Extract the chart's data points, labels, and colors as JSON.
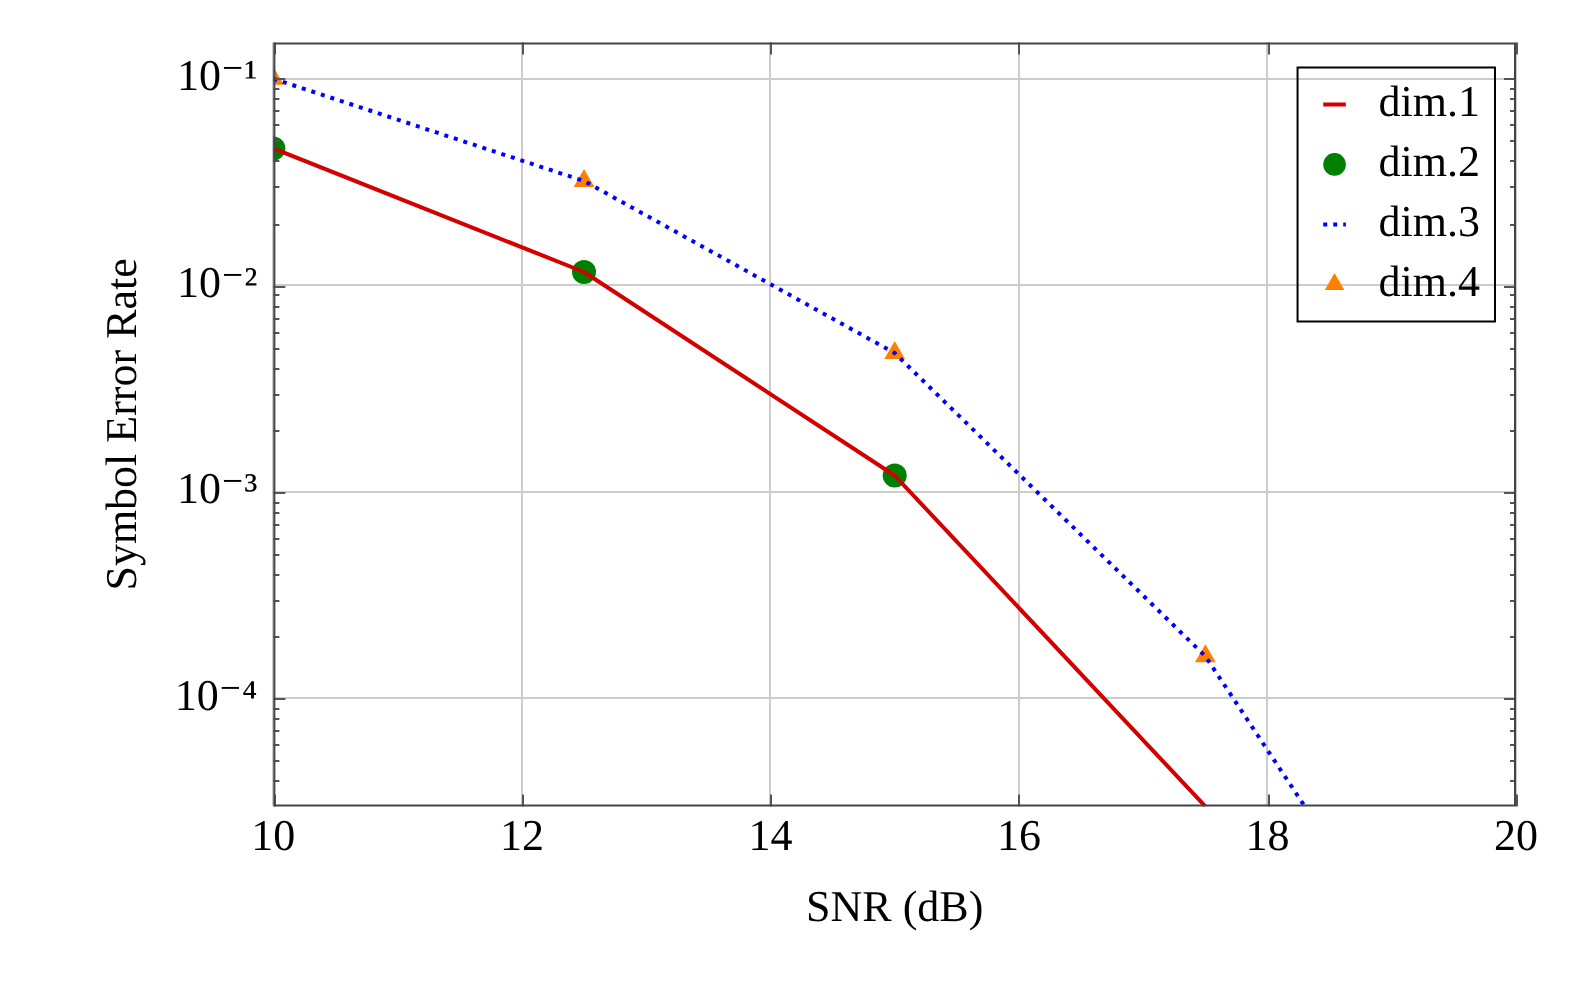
{
  "chart_data": {
    "type": "line",
    "xlabel": "SNR (dB)",
    "ylabel": "Symbol Error Rate",
    "x": [
      10,
      12.5,
      15,
      17.5
    ],
    "series": [
      {
        "name": "dim.1",
        "type": "line",
        "color": "#d40000",
        "marker": "none",
        "line_style": "solid",
        "values": [
          0.046,
          0.0116,
          0.0012,
          3e-05
        ]
      },
      {
        "name": "dim.2",
        "type": "scatter",
        "color": "#008000",
        "marker": "circle",
        "values": [
          0.046,
          0.0116,
          0.0012,
          null
        ]
      },
      {
        "name": "dim.3",
        "type": "line",
        "color": "#0000ff",
        "marker": "none",
        "line_style": "dotted",
        "x": [
          10,
          12.5,
          15,
          17.5,
          18.3
        ],
        "values": [
          0.1,
          0.032,
          0.0047,
          0.00016,
          3e-05
        ]
      },
      {
        "name": "dim.4",
        "type": "scatter",
        "color": "#ff8000",
        "marker": "triangle",
        "values": [
          0.1,
          0.032,
          0.0047,
          0.00016
        ]
      }
    ],
    "log": "y",
    "xlim": [
      10,
      20
    ],
    "ylim": [
      3e-05,
      0.15
    ],
    "xticks": [
      10,
      12,
      14,
      16,
      18,
      20
    ],
    "yticks": [
      {
        "value": 4e-05,
        "label": null
      },
      {
        "value": 5e-05,
        "label": null
      },
      {
        "value": 6e-05,
        "label": null
      },
      {
        "value": 7e-05,
        "label": null
      },
      {
        "value": 8e-05,
        "label": null
      },
      {
        "value": 9e-05,
        "label": null
      },
      {
        "value": 0.0001,
        "label": "10⁻⁴"
      },
      {
        "value": 0.0002,
        "label": null
      },
      {
        "value": 0.0003,
        "label": null
      },
      {
        "value": 0.0004,
        "label": null
      },
      {
        "value": 0.0005,
        "label": null
      },
      {
        "value": 0.0006,
        "label": null
      },
      {
        "value": 0.0007,
        "label": null
      },
      {
        "value": 0.0008,
        "label": null
      },
      {
        "value": 0.0009,
        "label": null
      },
      {
        "value": 0.001,
        "label": "10⁻³"
      },
      {
        "value": 0.002,
        "label": null
      },
      {
        "value": 0.003,
        "label": null
      },
      {
        "value": 0.004,
        "label": null
      },
      {
        "value": 0.005,
        "label": null
      },
      {
        "value": 0.006,
        "label": null
      },
      {
        "value": 0.007,
        "label": null
      },
      {
        "value": 0.008,
        "label": null
      },
      {
        "value": 0.009,
        "label": null
      },
      {
        "value": 0.01,
        "label": "10⁻²"
      },
      {
        "value": 0.02,
        "label": null
      },
      {
        "value": 0.03,
        "label": null
      },
      {
        "value": 0.04,
        "label": null
      },
      {
        "value": 0.05,
        "label": null
      },
      {
        "value": 0.06,
        "label": null
      },
      {
        "value": 0.07,
        "label": null
      },
      {
        "value": 0.08,
        "label": null
      },
      {
        "value": 0.09,
        "label": null
      },
      {
        "value": 0.1,
        "label": "10⁻¹"
      }
    ],
    "grid": true,
    "legend": "top right"
  }
}
